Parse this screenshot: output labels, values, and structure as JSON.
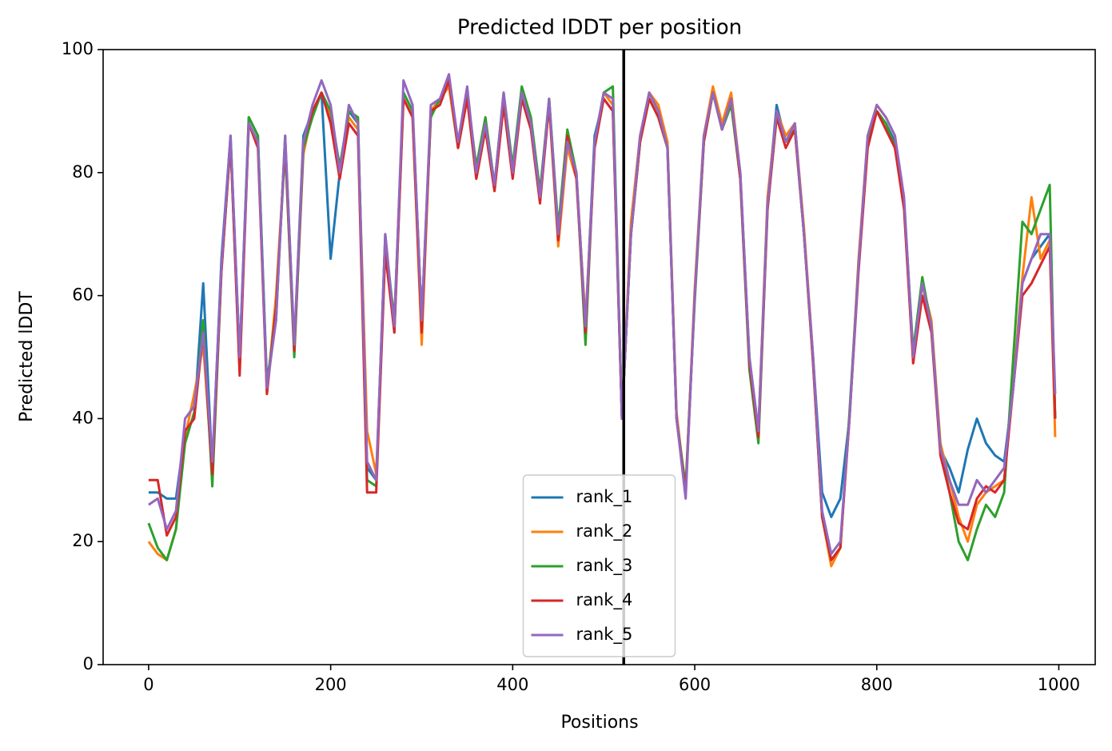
{
  "chart_data": {
    "type": "line",
    "title": "Predicted lDDT per position",
    "x_label": "Positions",
    "y_label": "Predicted lDDT",
    "x": [
      0,
      10,
      20,
      30,
      40,
      50,
      60,
      70,
      80,
      90,
      100,
      110,
      120,
      130,
      140,
      150,
      160,
      170,
      180,
      190,
      200,
      210,
      220,
      230,
      240,
      250,
      260,
      270,
      280,
      290,
      300,
      310,
      320,
      330,
      340,
      350,
      360,
      370,
      380,
      390,
      400,
      410,
      420,
      430,
      440,
      450,
      460,
      470,
      480,
      490,
      500,
      510,
      520,
      530,
      540,
      550,
      560,
      570,
      580,
      590,
      600,
      610,
      620,
      630,
      640,
      650,
      660,
      670,
      680,
      690,
      700,
      710,
      720,
      730,
      740,
      750,
      760,
      770,
      780,
      790,
      800,
      810,
      820,
      830,
      840,
      850,
      860,
      870,
      880,
      890,
      900,
      910,
      920,
      930,
      940,
      950,
      960,
      970,
      980,
      990,
      996
    ],
    "series": [
      {
        "name": "rank_1",
        "color": "#1f77b4",
        "values": [
          28,
          28,
          27,
          27,
          38,
          40,
          62,
          32,
          66,
          86,
          50,
          89,
          86,
          46,
          56,
          86,
          52,
          86,
          90,
          93,
          66,
          80,
          90,
          88,
          32,
          30,
          70,
          54,
          93,
          90,
          56,
          90,
          92,
          94,
          84,
          93,
          80,
          88,
          78,
          92,
          80,
          93,
          88,
          76,
          92,
          70,
          85,
          80,
          55,
          86,
          92,
          90,
          40,
          70,
          85,
          93,
          90,
          85,
          40,
          28,
          60,
          85,
          93,
          87,
          92,
          80,
          50,
          38,
          75,
          91,
          85,
          88,
          70,
          50,
          28,
          24,
          27,
          40,
          65,
          85,
          90,
          88,
          85,
          75,
          50,
          62,
          55,
          35,
          32,
          28,
          35,
          40,
          36,
          34,
          33,
          45,
          62,
          66,
          68,
          70,
          40
        ]
      },
      {
        "name": "rank_2",
        "color": "#ff7f0e",
        "values": [
          20,
          18,
          17,
          22,
          37,
          44,
          52,
          31,
          64,
          85,
          48,
          88,
          85,
          44,
          60,
          84,
          51,
          83,
          90,
          93,
          89,
          79,
          89,
          87,
          38,
          31,
          68,
          56,
          92,
          89,
          52,
          90,
          92,
          94,
          84,
          92,
          79,
          87,
          77,
          91,
          80,
          92,
          88,
          76,
          91,
          68,
          84,
          79,
          56,
          84,
          93,
          91,
          40,
          72,
          86,
          93,
          91,
          85,
          41,
          28,
          61,
          86,
          94,
          88,
          93,
          80,
          49,
          38,
          76,
          90,
          86,
          88,
          71,
          50,
          24,
          16,
          19,
          40,
          66,
          86,
          91,
          89,
          86,
          75,
          49,
          62,
          56,
          36,
          30,
          24,
          20,
          26,
          28,
          29,
          30,
          46,
          63,
          76,
          66,
          69,
          37
        ]
      },
      {
        "name": "rank_3",
        "color": "#2ca02c",
        "values": [
          23,
          19,
          17,
          22,
          36,
          41,
          56,
          29,
          64,
          85,
          48,
          89,
          86,
          45,
          58,
          84,
          50,
          84,
          89,
          93,
          90,
          81,
          90,
          89,
          30,
          29,
          69,
          56,
          93,
          90,
          56,
          89,
          92,
          95,
          85,
          93,
          81,
          89,
          78,
          93,
          81,
          94,
          89,
          77,
          92,
          71,
          87,
          80,
          52,
          85,
          93,
          94,
          40,
          70,
          85,
          92,
          89,
          84,
          40,
          29,
          59,
          85,
          93,
          87,
          91,
          79,
          48,
          36,
          74,
          89,
          85,
          87,
          70,
          49,
          24,
          17,
          19,
          41,
          65,
          85,
          90,
          88,
          84,
          75,
          51,
          63,
          55,
          35,
          28,
          20,
          17,
          22,
          26,
          24,
          28,
          50,
          72,
          70,
          74,
          78,
          40
        ]
      },
      {
        "name": "rank_4",
        "color": "#d62728",
        "values": [
          30,
          30,
          21,
          24,
          38,
          40,
          54,
          31,
          64,
          85,
          47,
          88,
          84,
          44,
          58,
          85,
          51,
          85,
          90,
          93,
          88,
          79,
          88,
          86,
          28,
          28,
          67,
          54,
          92,
          89,
          54,
          90,
          91,
          95,
          84,
          92,
          79,
          87,
          77,
          91,
          79,
          92,
          87,
          75,
          91,
          69,
          86,
          79,
          54,
          84,
          92,
          90,
          40,
          70,
          85,
          92,
          89,
          84,
          40,
          28,
          60,
          85,
          93,
          87,
          92,
          79,
          49,
          37,
          74,
          89,
          84,
          87,
          70,
          49,
          24,
          17,
          19,
          40,
          64,
          84,
          90,
          87,
          84,
          74,
          49,
          60,
          54,
          34,
          28,
          23,
          22,
          27,
          29,
          28,
          30,
          45,
          60,
          62,
          65,
          68,
          40
        ]
      },
      {
        "name": "rank_5",
        "color": "#9467bd",
        "values": [
          26,
          27,
          22,
          25,
          40,
          42,
          54,
          33,
          65,
          86,
          50,
          88,
          85,
          45,
          56,
          86,
          52,
          85,
          91,
          95,
          91,
          80,
          91,
          88,
          33,
          30,
          70,
          55,
          95,
          91,
          56,
          91,
          92,
          96,
          85,
          94,
          80,
          88,
          78,
          93,
          80,
          93,
          88,
          76,
          92,
          70,
          85,
          80,
          55,
          85,
          93,
          92,
          40,
          70,
          86,
          93,
          90,
          84,
          40,
          27,
          60,
          86,
          93,
          87,
          92,
          80,
          50,
          38,
          75,
          90,
          85,
          88,
          70,
          50,
          25,
          18,
          20,
          40,
          65,
          86,
          91,
          89,
          86,
          76,
          50,
          62,
          55,
          35,
          30,
          26,
          26,
          30,
          28,
          30,
          32,
          45,
          62,
          66,
          70,
          70,
          44
        ]
      }
    ],
    "vlines": [
      522
    ],
    "vline_color": "#000000",
    "xlim": [
      -50,
      1040
    ],
    "ylim": [
      0,
      100
    ],
    "xticks": [
      0,
      200,
      400,
      600,
      800,
      1000
    ],
    "yticks": [
      0,
      20,
      40,
      60,
      80,
      100
    ],
    "legend": "lower center"
  }
}
